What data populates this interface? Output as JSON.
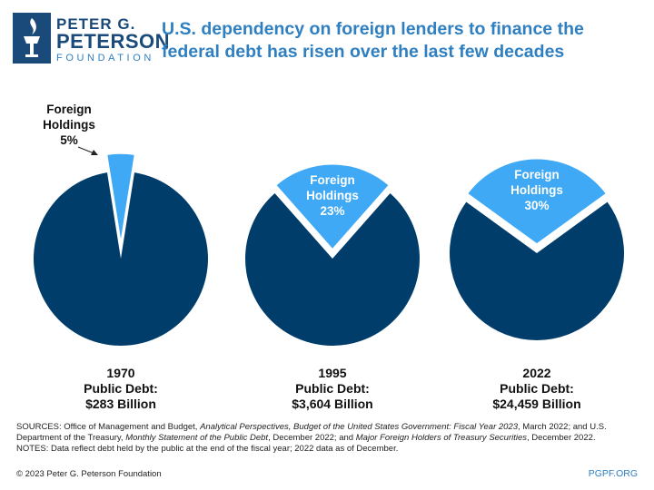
{
  "brand": {
    "name_line1": "PETER G.",
    "name_line2": "PETERSON",
    "name_line3": "FOUNDATION",
    "color_primary": "#1a4a7a",
    "color_accent": "#2f7fc1"
  },
  "title": "U.S. dependency on foreign lenders to finance the federal debt has risen over the last few decades",
  "chart_data": {
    "type": "pie",
    "colors": {
      "domestic": "#003d6b",
      "foreign": "#3fa9f5"
    },
    "charts": [
      {
        "year": "1970",
        "debt_label": "Public Debt:",
        "debt_value": "$283 Billion",
        "foreign_pct": 5,
        "label_lines": [
          "Foreign",
          "Holdings",
          "5%"
        ],
        "label_position": "outside-top-left"
      },
      {
        "year": "1995",
        "debt_label": "Public Debt:",
        "debt_value": "$3,604 Billion",
        "foreign_pct": 23,
        "label_lines": [
          "Foreign",
          "Holdings",
          "23%"
        ],
        "label_position": "inside-slice"
      },
      {
        "year": "2022",
        "debt_label": "Public Debt:",
        "debt_value": "$24,459 Billion",
        "foreign_pct": 30,
        "label_lines": [
          "Foreign",
          "Holdings",
          "30%"
        ],
        "label_position": "inside-slice"
      }
    ]
  },
  "notes": {
    "sources_prefix": "SOURCES: Office of Management and Budget, ",
    "sources_title1": "Analytical Perspectives, Budget of the United States Government: Fiscal Year 2023",
    "sources_mid1": ", March 2022; and U.S. Department of the Treasury, ",
    "sources_title2": "Monthly Statement of the Public Debt",
    "sources_mid2": ", December 2022; and ",
    "sources_title3": "Major Foreign Holders of Treasury Securities",
    "sources_suffix": ", December 2022.",
    "notes_line": "NOTES: Data reflect debt held by the public at the end of the fiscal year; 2022 data as of December."
  },
  "footer": {
    "copyright": "© 2023 Peter G. Peterson Foundation",
    "site": "PGPF.ORG"
  }
}
